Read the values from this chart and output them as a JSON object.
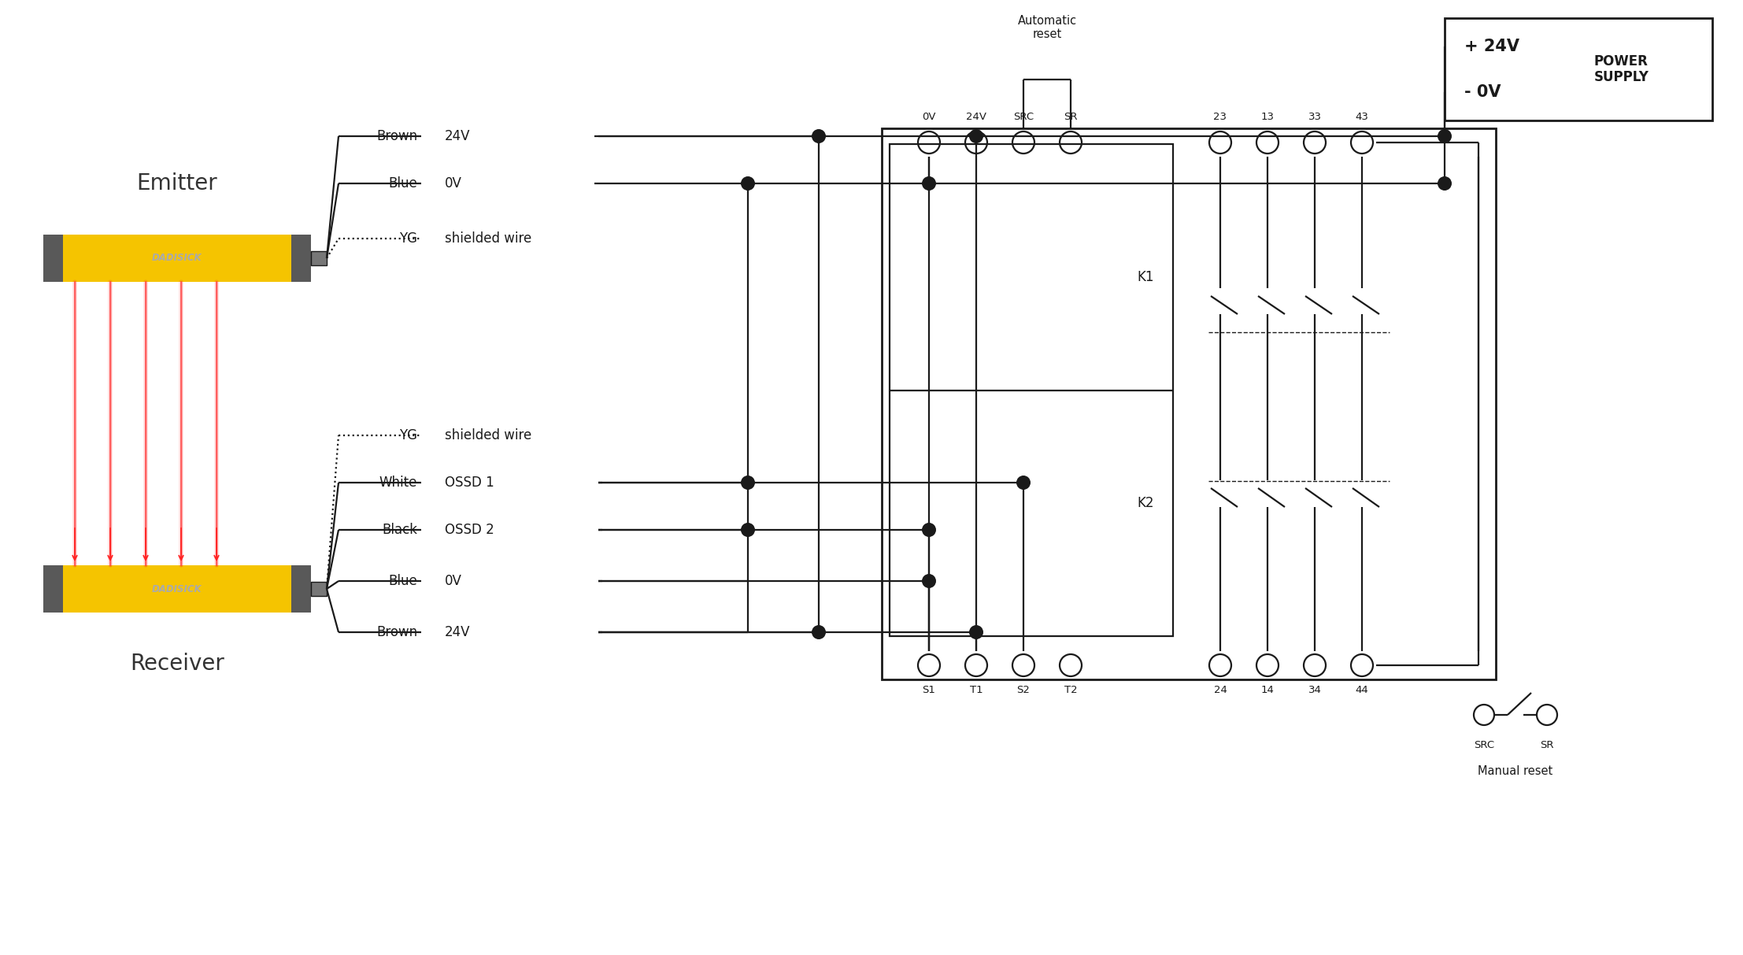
{
  "bg_color": "#ffffff",
  "line_color": "#1a1a1a",
  "emitter_label": "Emitter",
  "receiver_label": "Receiver",
  "yellow": "#f5c400",
  "dark_cap": "#666666",
  "connector_color": "#888888",
  "emitter_wires": [
    {
      "label": "Brown",
      "signal": "24V"
    },
    {
      "label": "Blue",
      "signal": "0V"
    },
    {
      "label": "YG",
      "signal": "shielded wire"
    }
  ],
  "receiver_wires": [
    {
      "label": "YG",
      "signal": "shielded wire"
    },
    {
      "label": "White",
      "signal": "OSSD 1"
    },
    {
      "label": "Black",
      "signal": "OSSD 2"
    },
    {
      "label": "Blue",
      "signal": "0V"
    },
    {
      "label": "Brown",
      "signal": "24V"
    }
  ],
  "top_terminals": [
    "0V",
    "24V",
    "SRC",
    "SR"
  ],
  "bottom_terminals": [
    "S1",
    "T1",
    "S2",
    "T2"
  ],
  "right_top_terminals": [
    "23",
    "13",
    "33",
    "43"
  ],
  "right_bottom_terminals": [
    "24",
    "14",
    "34",
    "44"
  ],
  "power_plus": "+ 24V",
  "power_minus": "- 0V",
  "power_label": "POWER\nSUPPLY",
  "auto_reset": "Automatic\nreset",
  "manual_reset": "Manual reset",
  "k_labels": [
    "K1",
    "K2"
  ]
}
